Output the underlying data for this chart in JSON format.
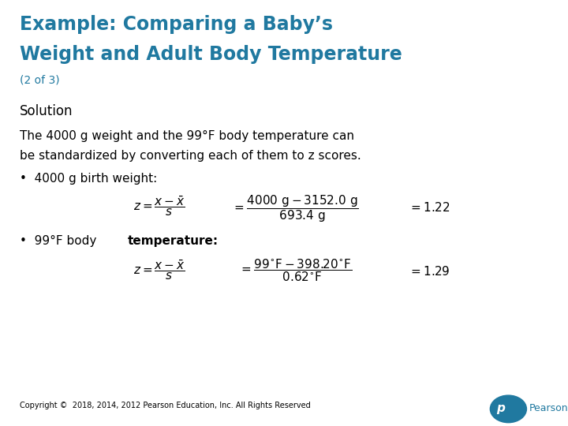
{
  "title_line1": "Example: Comparing a Baby’s",
  "title_line2": "Weight and Adult Body Temperature",
  "subtitle": "(2 of 3)",
  "title_color": "#2079A0",
  "solution_label": "Solution",
  "body_text1": "The 4000 g weight and the 99°F body temperature can",
  "body_text2": "be standardized by converting each of them to z scores.",
  "bullet1": "•  4000 g birth weight:",
  "bullet2_normal": "•  99°F body ",
  "bullet2_bold": "temperature:",
  "copyright": "Copyright ©  2018, 2014, 2012 Pearson Education, Inc. All Rights Reserved",
  "bg_color": "#ffffff",
  "text_color": "#000000",
  "teal_color": "#2079A0",
  "title_fontsize": 17,
  "subtitle_fontsize": 10,
  "solution_fontsize": 12,
  "body_fontsize": 11,
  "bullet_fontsize": 11,
  "formula_fontsize": 11,
  "copyright_fontsize": 7
}
